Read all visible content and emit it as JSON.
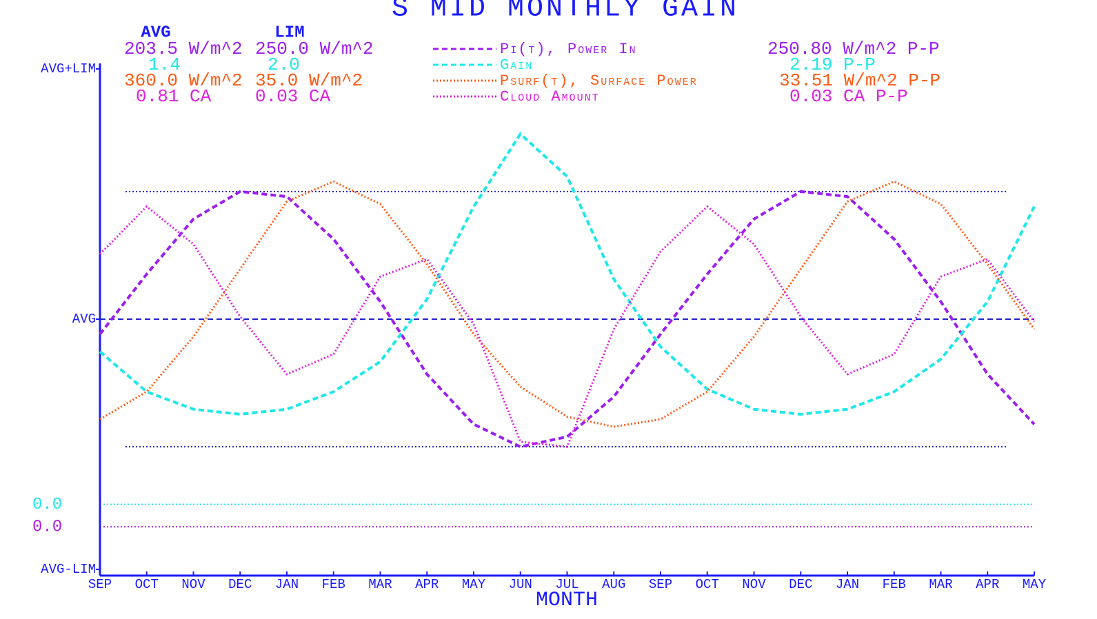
{
  "chart_data": {
    "type": "line",
    "title": "S MID MONTHLY GAIN",
    "avg_header": "AVG",
    "lim_header": "LIM",
    "x_label": "MONTH",
    "categories": [
      "SEP",
      "OCT",
      "NOV",
      "DEC",
      "JAN",
      "FEB",
      "MAR",
      "APR",
      "MAY",
      "JUN",
      "JUL",
      "AUG",
      "SEP",
      "OCT",
      "NOV",
      "DEC",
      "JAN",
      "FEB",
      "MAR",
      "APR",
      "MAY"
    ],
    "ylim": [
      -1,
      1
    ],
    "yticks": [
      {
        "value": 1,
        "label": "AVG+LIM"
      },
      {
        "value": 0,
        "label": "AVG"
      },
      {
        "value": -1,
        "label": "AVG-LIM"
      }
    ],
    "axis_color": "#1a1aff",
    "ref_lines": [
      {
        "value": 0.51,
        "color": "#2020d0",
        "dash": "dotted"
      },
      {
        "value": 0,
        "color": "#2020d0",
        "dash": "dashed"
      },
      {
        "value": -0.51,
        "color": "#2020d0",
        "dash": "dotted"
      },
      {
        "value": -0.74,
        "label": "0.0",
        "color": "#1ee8e8",
        "dash": "dotted"
      },
      {
        "value": -0.83,
        "label": "0.0",
        "color": "#b020e0",
        "dash": "dotted"
      }
    ],
    "series": [
      {
        "name": "Pi(t), Power In",
        "color": "#9b1ff0",
        "dash": "dashed",
        "avg": "203.5 W/m^2",
        "lim": "250.0 W/m^2",
        "pp": "250.80 W/m^2 P-P",
        "values": [
          -0.06,
          0.18,
          0.4,
          0.51,
          0.49,
          0.32,
          0.07,
          -0.22,
          -0.42,
          -0.51,
          -0.47,
          -0.31,
          -0.06,
          0.18,
          0.4,
          0.51,
          0.49,
          0.32,
          0.07,
          -0.22,
          -0.42
        ]
      },
      {
        "name": "Gain",
        "color": "#1ee8e8",
        "dash": "dashed",
        "avg": "1.4",
        "lim": "2.0",
        "pp": "2.19  P-P",
        "values": [
          -0.13,
          -0.29,
          -0.36,
          -0.38,
          -0.36,
          -0.29,
          -0.17,
          0.08,
          0.45,
          0.74,
          0.57,
          0.16,
          -0.11,
          -0.28,
          -0.36,
          -0.38,
          -0.36,
          -0.29,
          -0.16,
          0.07,
          0.45
        ]
      },
      {
        "name": "Psurf(t), Surface Power",
        "color": "#ff5a14",
        "dash": "dotted",
        "avg": "360.0 W/m^2",
        "lim": "35.0 W/m^2",
        "pp": "33.51 W/m^2 P-P",
        "values": [
          -0.4,
          -0.29,
          -0.07,
          0.2,
          0.47,
          0.55,
          0.46,
          0.22,
          -0.06,
          -0.27,
          -0.39,
          -0.43,
          -0.4,
          -0.29,
          -0.07,
          0.2,
          0.47,
          0.55,
          0.46,
          0.22,
          -0.04
        ]
      },
      {
        "name": "Cloud Amount",
        "color": "#e020e0",
        "dash": "dotted",
        "avg": "0.81 CA",
        "lim": "0.03 CA",
        "pp": "0.03 CA P-P",
        "values": [
          0.26,
          0.45,
          0.3,
          0.01,
          -0.22,
          -0.14,
          0.17,
          0.24,
          -0.02,
          -0.49,
          -0.51,
          -0.04,
          0.27,
          0.45,
          0.3,
          0.01,
          -0.22,
          -0.14,
          0.17,
          0.24,
          -0.01
        ]
      }
    ]
  }
}
